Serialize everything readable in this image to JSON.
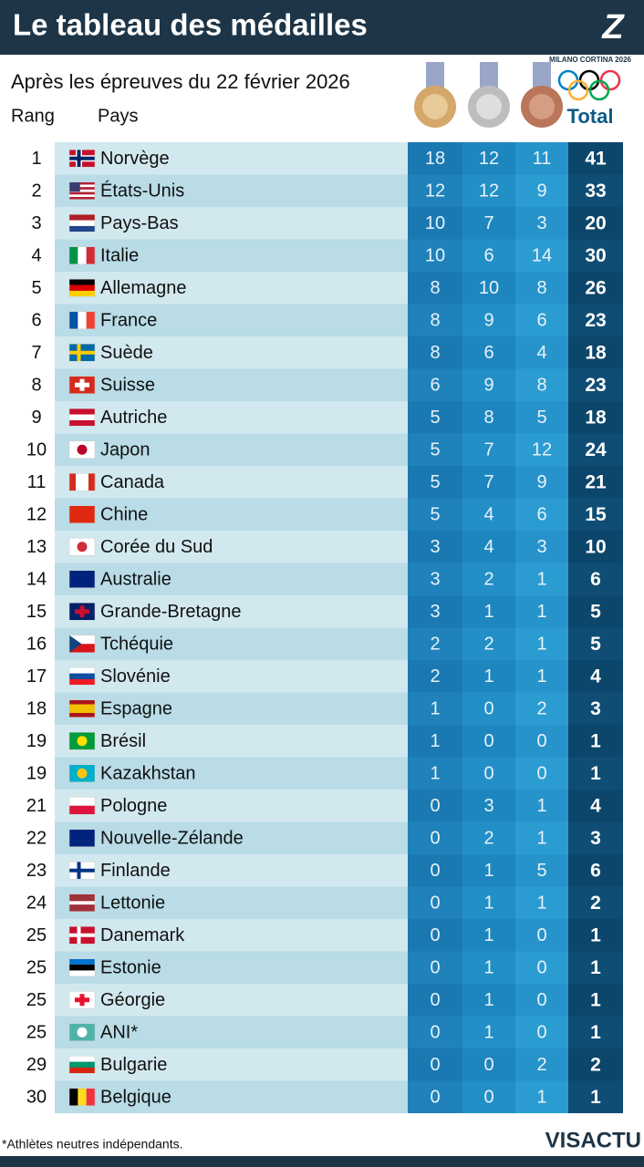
{
  "header": {
    "title": "Le tableau des médailles",
    "subtitle": "Après les épreuves du 22 février 2026",
    "logo_text": "MILANO CORTINA 2026"
  },
  "table": {
    "header": [
      "Rang",
      "Pays",
      "Total"
    ],
    "rows": [
      [
        1,
        "Norvège",
        18,
        12,
        11,
        41
      ],
      [
        2,
        "États-Unis",
        12,
        12,
        9,
        33
      ],
      [
        3,
        "Pays-Bas",
        10,
        7,
        3,
        20
      ],
      [
        4,
        "Italie",
        10,
        6,
        14,
        30
      ],
      [
        5,
        "Allemagne",
        8,
        10,
        8,
        26
      ],
      [
        6,
        "France",
        8,
        9,
        6,
        23
      ],
      [
        7,
        "Suède",
        8,
        6,
        4,
        18
      ],
      [
        8,
        "Suisse",
        6,
        9,
        8,
        23
      ],
      [
        9,
        "Autriche",
        5,
        8,
        5,
        18
      ],
      [
        10,
        "Japon",
        5,
        7,
        12,
        24
      ],
      [
        11,
        "Canada",
        5,
        7,
        9,
        21
      ],
      [
        12,
        "Chine",
        5,
        4,
        6,
        15
      ],
      [
        13,
        "Corée du Sud",
        3,
        4,
        3,
        10
      ],
      [
        14,
        "Australie",
        3,
        2,
        1,
        6
      ],
      [
        15,
        "Grande-Bretagne",
        3,
        1,
        1,
        5
      ],
      [
        16,
        "Tchéquie",
        2,
        2,
        1,
        5
      ],
      [
        17,
        "Slovénie",
        2,
        1,
        1,
        4
      ],
      [
        18,
        "Espagne",
        1,
        0,
        2,
        3
      ],
      [
        19,
        "Brésil",
        1,
        0,
        0,
        1
      ],
      [
        19,
        "Kazakhstan",
        1,
        0,
        0,
        1
      ],
      [
        21,
        "Pologne",
        0,
        3,
        1,
        4
      ],
      [
        22,
        "Nouvelle-Zélande",
        0,
        2,
        1,
        3
      ],
      [
        23,
        "Finlande",
        0,
        1,
        5,
        6
      ],
      [
        24,
        "Lettonie",
        0,
        1,
        1,
        2
      ],
      [
        25,
        "Danemark",
        0,
        1,
        0,
        1
      ],
      [
        25,
        "Estonie",
        0,
        1,
        0,
        1
      ],
      [
        25,
        "Géorgie",
        0,
        1,
        0,
        1
      ],
      [
        25,
        "ANI*",
        0,
        1,
        0,
        1
      ],
      [
        29,
        "Bulgarie",
        0,
        0,
        2,
        2
      ],
      [
        30,
        "Belgique",
        0,
        0,
        1,
        1
      ]
    ]
  },
  "footer": {
    "note": "*Athlètes neutres indépendants.",
    "brand": "VISACTU"
  }
}
